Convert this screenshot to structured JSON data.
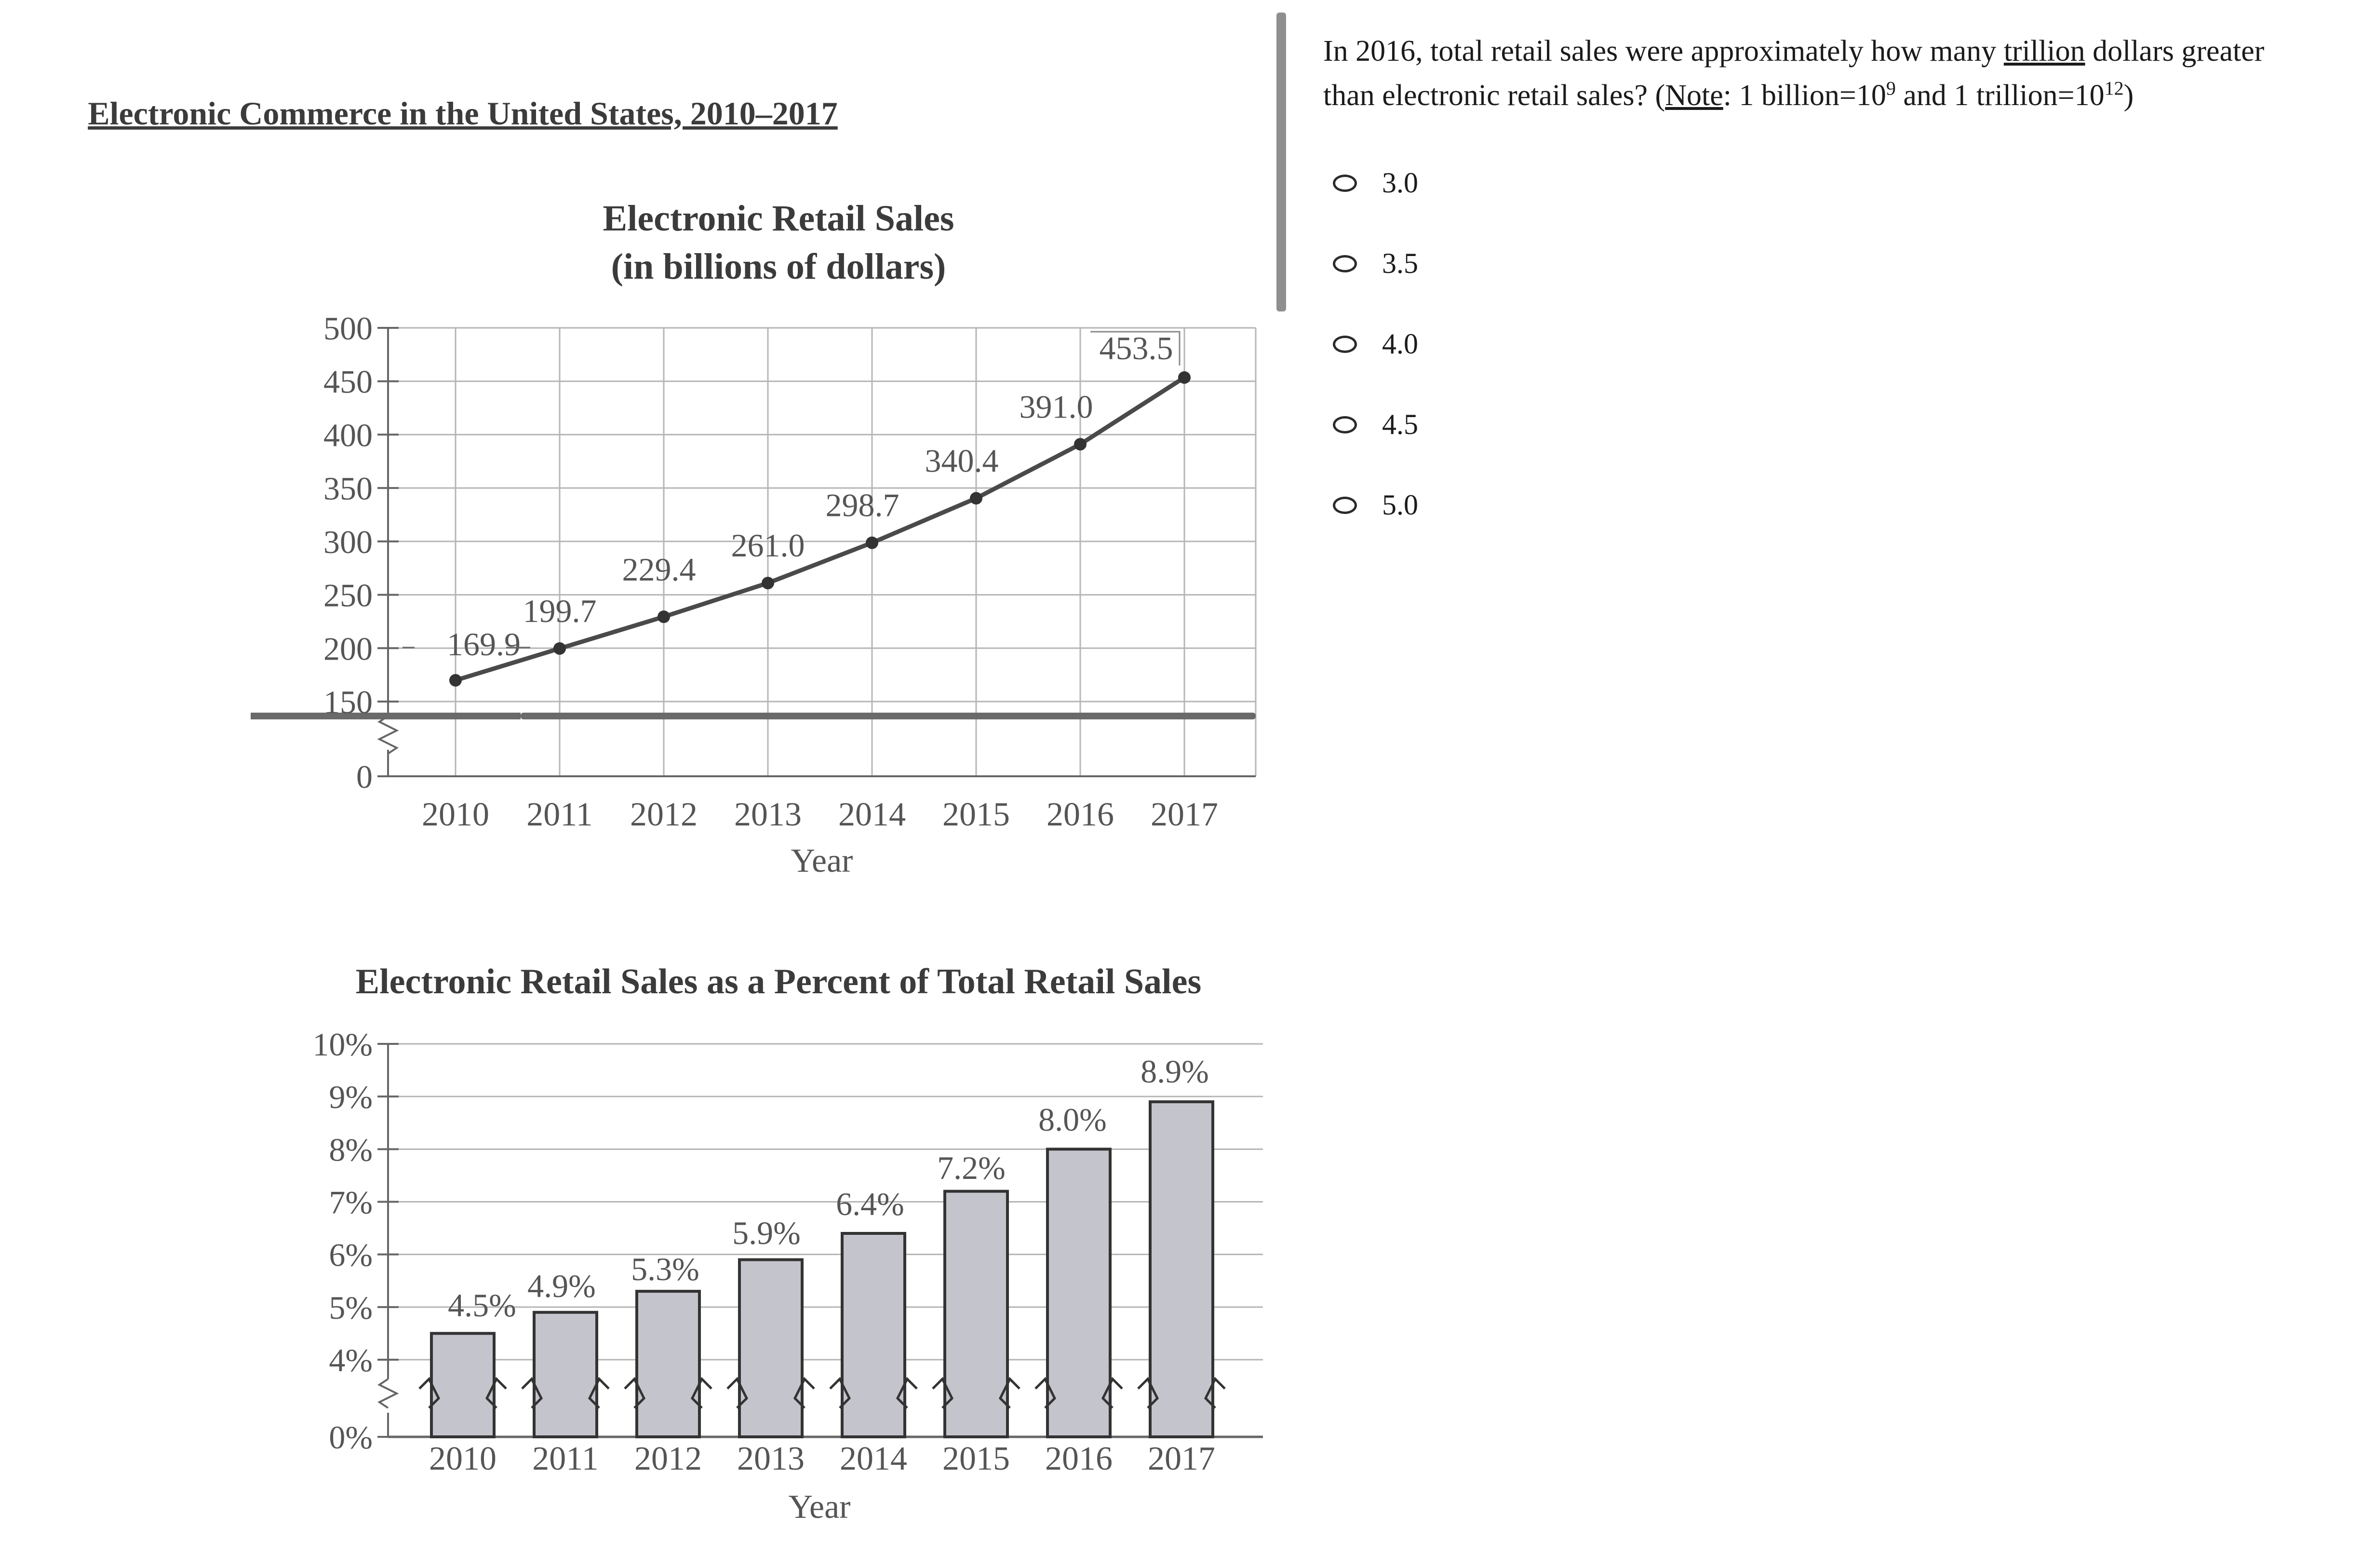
{
  "figure_title": "Electronic Commerce in the United States, 2010–2017",
  "question": {
    "text_before": "In 2016, total retail sales were approximately how many ",
    "underlined_word": "trillion",
    "text_mid": " dollars greater than electronic retail sales? (",
    "note_label": "Note",
    "note_body": ": 1 billion=10",
    "exp_billion": "9",
    "text_and": " and 1 trillion=10",
    "exp_trillion": "12",
    "text_close": ")"
  },
  "choices": [
    {
      "label": "3.0"
    },
    {
      "label": "3.5"
    },
    {
      "label": "4.0"
    },
    {
      "label": "4.5"
    },
    {
      "label": "5.0"
    }
  ],
  "chart_data": [
    {
      "type": "line",
      "title": "Electronic Retail Sales",
      "subtitle": "(in billions of dollars)",
      "xlabel": "Year",
      "ylabel": "",
      "x": [
        "2010",
        "2011",
        "2012",
        "2013",
        "2014",
        "2015",
        "2016",
        "2017"
      ],
      "values": [
        169.9,
        199.7,
        229.4,
        261.0,
        298.7,
        340.4,
        391.0,
        453.5
      ],
      "data_labels": [
        "169.9",
        "199.7",
        "229.4",
        "261.0",
        "298.7",
        "340.4",
        "391.0",
        "453.5"
      ],
      "yticks": [
        "0",
        "150",
        "200",
        "250",
        "300",
        "350",
        "400",
        "450",
        "500"
      ],
      "ylim": [
        150,
        500
      ],
      "axis_break": "between 0 and 150",
      "grid": true
    },
    {
      "type": "bar",
      "title": "Electronic Retail Sales as a Percent of Total Retail Sales",
      "xlabel": "Year",
      "ylabel": "",
      "categories": [
        "2010",
        "2011",
        "2012",
        "2013",
        "2014",
        "2015",
        "2016",
        "2017"
      ],
      "values": [
        4.5,
        4.9,
        5.3,
        5.9,
        6.4,
        7.2,
        8.0,
        8.9
      ],
      "data_labels": [
        "4.5%",
        "4.9%",
        "5.3%",
        "5.9%",
        "6.4%",
        "7.2%",
        "8.0%",
        "8.9%"
      ],
      "yticks": [
        "0%",
        "4%",
        "5%",
        "6%",
        "7%",
        "8%",
        "9%",
        "10%"
      ],
      "ylim": [
        4,
        10
      ],
      "axis_break": "between 0% and 4%",
      "bar_color": "#c4c4cc",
      "grid": true
    }
  ]
}
